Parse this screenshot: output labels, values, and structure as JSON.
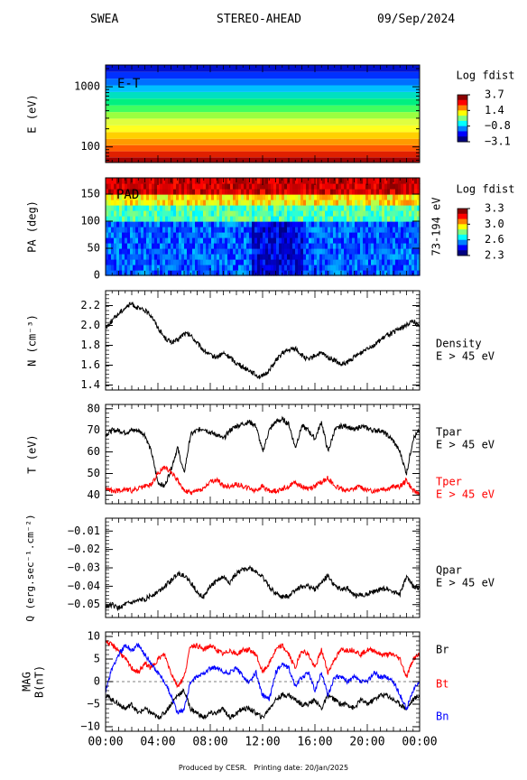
{
  "header": {
    "instrument": "SWEA",
    "spacecraft": "STEREO-AHEAD",
    "date": "09/Sep/2024"
  },
  "footer": {
    "produced_by": "Produced by CESR.",
    "printing_date": "Printing date: 20/Jan/2025"
  },
  "colors": {
    "black": "#000000",
    "red": "#ff0000",
    "blue": "#0000ff"
  },
  "chart_data": [
    {
      "type": "heatmap",
      "panel": "energy",
      "tag": "E-T",
      "ylabel": "E (eV)",
      "yscale": "log",
      "ylim": [
        55,
        2300
      ],
      "yticks": [
        {
          "v": 100,
          "label": "100"
        },
        {
          "v": 1000,
          "label": "1000"
        }
      ],
      "colorbar": {
        "title": "Log fdist",
        "max": 3.7,
        "min": -3.1,
        "ticks": [
          "3.7",
          "1.4",
          "-0.8",
          "-3.1"
        ]
      },
      "energy_bands": [
        {
          "e": 60,
          "color": "#a00000"
        },
        {
          "e": 75,
          "color": "#e02000"
        },
        {
          "e": 95,
          "color": "#ff5a00"
        },
        {
          "e": 120,
          "color": "#ff9a00"
        },
        {
          "e": 155,
          "color": "#ffd000"
        },
        {
          "e": 200,
          "color": "#ffff20"
        },
        {
          "e": 260,
          "color": "#e0ff40"
        },
        {
          "e": 335,
          "color": "#9aff40"
        },
        {
          "e": 430,
          "color": "#40ff60"
        },
        {
          "e": 560,
          "color": "#00f080"
        },
        {
          "e": 720,
          "color": "#00e0c0"
        },
        {
          "e": 930,
          "color": "#00c0ff"
        },
        {
          "e": 1200,
          "color": "#0070ff"
        },
        {
          "e": 1550,
          "color": "#0030ff"
        },
        {
          "e": 2000,
          "color": "#0010d0"
        }
      ]
    },
    {
      "type": "heatmap",
      "panel": "pad",
      "tag": "PAD",
      "ylabel": "PA (deg)",
      "ylim": [
        0,
        180
      ],
      "yticks": [
        0,
        50,
        100,
        150
      ],
      "right_label": "73-194 eV",
      "colorbar": {
        "title": "Log fdist",
        "max": 3.3,
        "min": 2.3,
        "ticks": [
          "3.3",
          "3.0",
          "2.6",
          "2.3"
        ]
      }
    },
    {
      "type": "line",
      "panel": "density",
      "ylabel": "N (cm⁻³)",
      "ylim": [
        1.35,
        2.35
      ],
      "yticks": [
        "1.4",
        "1.6",
        "1.8",
        "2.0",
        "2.2"
      ],
      "legend": [
        "Density",
        "E > 45 eV"
      ],
      "series": [
        {
          "name": "Density",
          "color": "#000000",
          "x": [
            0,
            0.5,
            1,
            1.5,
            2,
            2.5,
            3,
            3.5,
            4,
            4.5,
            5,
            5.5,
            6,
            6.5,
            7,
            7.5,
            8,
            8.5,
            9,
            9.5,
            10,
            10.5,
            11,
            11.5,
            12,
            12.5,
            13,
            13.5,
            14,
            14.5,
            15,
            15.5,
            16,
            16.5,
            17,
            17.5,
            18,
            18.5,
            19,
            19.5,
            20,
            20.5,
            21,
            21.5,
            22,
            22.5,
            23,
            23.5,
            24
          ],
          "values": [
            1.98,
            2.05,
            2.12,
            2.18,
            2.22,
            2.17,
            2.15,
            2.1,
            1.98,
            1.88,
            1.83,
            1.85,
            1.92,
            1.9,
            1.82,
            1.75,
            1.7,
            1.68,
            1.72,
            1.68,
            1.62,
            1.58,
            1.55,
            1.5,
            1.48,
            1.55,
            1.64,
            1.72,
            1.75,
            1.77,
            1.7,
            1.65,
            1.7,
            1.72,
            1.68,
            1.65,
            1.6,
            1.63,
            1.68,
            1.72,
            1.78,
            1.8,
            1.85,
            1.9,
            1.93,
            1.97,
            2.0,
            2.05,
            1.98
          ]
        }
      ]
    },
    {
      "type": "line",
      "panel": "temperature",
      "ylabel": "T (eV)",
      "ylim": [
        36,
        82
      ],
      "yticks": [
        "40",
        "50",
        "60",
        "70",
        "80"
      ],
      "legend": [
        "Tpar",
        "E > 45 eV",
        "Tper",
        "E > 45 eV"
      ],
      "series": [
        {
          "name": "Tpar",
          "color": "#000000",
          "x": [
            0,
            0.5,
            1,
            1.5,
            2,
            2.5,
            3,
            3.5,
            4,
            4.5,
            5,
            5.5,
            6,
            6.5,
            7,
            7.5,
            8,
            8.5,
            9,
            9.5,
            10,
            10.5,
            11,
            11.5,
            12,
            12.5,
            13,
            13.5,
            14,
            14.5,
            15,
            15.5,
            16,
            16.5,
            17,
            17.5,
            18,
            18.5,
            19,
            19.5,
            20,
            20.5,
            21,
            21.5,
            22,
            22.5,
            23,
            23.5,
            24
          ],
          "values": [
            68,
            70,
            70,
            69,
            70,
            70,
            68,
            60,
            46,
            44,
            52,
            62,
            50,
            68,
            70,
            71,
            69,
            68,
            66,
            70,
            72,
            73,
            74,
            72,
            60,
            70,
            74,
            75,
            73,
            62,
            72,
            70,
            66,
            74,
            60,
            70,
            72,
            72,
            70,
            72,
            71,
            70,
            70,
            68,
            65,
            60,
            50,
            66,
            70
          ]
        },
        {
          "name": "Tper",
          "color": "#ff0000",
          "x": [
            0,
            0.5,
            1,
            1.5,
            2,
            2.5,
            3,
            3.5,
            4,
            4.5,
            5,
            5.5,
            6,
            6.5,
            7,
            7.5,
            8,
            8.5,
            9,
            9.5,
            10,
            10.5,
            11,
            11.5,
            12,
            12.5,
            13,
            13.5,
            14,
            14.5,
            15,
            15.5,
            16,
            16.5,
            17,
            17.5,
            18,
            18.5,
            19,
            19.5,
            20,
            20.5,
            21,
            21.5,
            22,
            22.5,
            23,
            23.5,
            24
          ],
          "values": [
            43,
            42,
            42,
            43,
            42,
            43,
            44,
            45,
            50,
            53,
            51,
            47,
            42,
            41,
            42,
            43,
            46,
            47,
            44,
            44,
            45,
            44,
            43,
            42,
            44,
            42,
            42,
            43,
            44,
            46,
            44,
            43,
            44,
            46,
            48,
            44,
            43,
            42,
            43,
            44,
            42,
            42,
            43,
            43,
            44,
            44,
            47,
            42,
            41
          ]
        }
      ]
    },
    {
      "type": "line",
      "panel": "heatflux",
      "ylabel": "Q (erg.sec⁻¹.cm⁻²)",
      "ylim": [
        -0.057,
        -0.003
      ],
      "yticks": [
        "-0.05",
        "-0.04",
        "-0.03",
        "-0.02",
        "-0.01"
      ],
      "legend": [
        "Qpar",
        "E > 45 eV"
      ],
      "series": [
        {
          "name": "Qpar",
          "color": "#000000",
          "x": [
            0,
            0.5,
            1,
            1.5,
            2,
            2.5,
            3,
            3.5,
            4,
            4.5,
            5,
            5.5,
            6,
            6.5,
            7,
            7.5,
            8,
            8.5,
            9,
            9.5,
            10,
            10.5,
            11,
            11.5,
            12,
            12.5,
            13,
            13.5,
            14,
            14.5,
            15,
            15.5,
            16,
            16.5,
            17,
            17.5,
            18,
            18.5,
            19,
            19.5,
            20,
            20.5,
            21,
            21.5,
            22,
            22.5,
            23,
            23.5,
            24
          ],
          "values": [
            -0.051,
            -0.05,
            -0.052,
            -0.05,
            -0.049,
            -0.048,
            -0.047,
            -0.045,
            -0.043,
            -0.04,
            -0.037,
            -0.033,
            -0.034,
            -0.038,
            -0.043,
            -0.046,
            -0.04,
            -0.037,
            -0.035,
            -0.038,
            -0.033,
            -0.031,
            -0.03,
            -0.032,
            -0.035,
            -0.04,
            -0.044,
            -0.046,
            -0.045,
            -0.042,
            -0.04,
            -0.04,
            -0.042,
            -0.038,
            -0.034,
            -0.04,
            -0.042,
            -0.041,
            -0.045,
            -0.045,
            -0.044,
            -0.043,
            -0.042,
            -0.041,
            -0.043,
            -0.044,
            -0.035,
            -0.04,
            -0.041
          ]
        }
      ]
    },
    {
      "type": "line",
      "panel": "mag",
      "ylabel": "MAG B(nT)",
      "ylim": [
        -11,
        11
      ],
      "yticks": [
        "-10",
        "-5",
        "0",
        "5",
        "10"
      ],
      "legend": [
        "Br",
        "Bt",
        "Bn"
      ],
      "xlim": [
        0,
        24
      ],
      "xticks": [
        "00:00",
        "04:00",
        "08:00",
        "12:00",
        "16:00",
        "20:00",
        "00:00"
      ],
      "series": [
        {
          "name": "Br",
          "color": "#000000",
          "x": [
            0,
            0.5,
            1,
            1.5,
            2,
            2.5,
            3,
            3.5,
            4,
            4.5,
            5,
            5.5,
            6,
            6.5,
            7,
            7.5,
            8,
            8.5,
            9,
            9.5,
            10,
            10.5,
            11,
            11.5,
            12,
            12.5,
            13,
            13.5,
            14,
            14.5,
            15,
            15.5,
            16,
            16.5,
            17,
            17.5,
            18,
            18.5,
            19,
            19.5,
            20,
            20.5,
            21,
            21.5,
            22,
            22.5,
            23,
            23.5,
            24
          ],
          "values": [
            -3,
            -4,
            -5,
            -6,
            -5,
            -7,
            -6,
            -7,
            -8,
            -7,
            -5,
            -3,
            -2,
            -6,
            -7,
            -8,
            -7,
            -7,
            -6,
            -8,
            -7,
            -6,
            -6,
            -7,
            -8,
            -6,
            -4,
            -3,
            -3,
            -4,
            -5,
            -5,
            -4,
            -6,
            -3,
            -4,
            -5,
            -5,
            -6,
            -4,
            -5,
            -4,
            -3,
            -3,
            -4,
            -5,
            -6,
            -4,
            -3
          ]
        },
        {
          "name": "Bt",
          "color": "#ff0000",
          "x": [
            0,
            0.5,
            1,
            1.5,
            2,
            2.5,
            3,
            3.5,
            4,
            4.5,
            5,
            5.5,
            6,
            6.5,
            7,
            7.5,
            8,
            8.5,
            9,
            9.5,
            10,
            10.5,
            11,
            11.5,
            12,
            12.5,
            13,
            13.5,
            14,
            14.5,
            15,
            15.5,
            16,
            16.5,
            17,
            17.5,
            18,
            18.5,
            19,
            19.5,
            20,
            20.5,
            21,
            21.5,
            22,
            22.5,
            23,
            23.5,
            24
          ],
          "values": [
            9,
            8,
            7,
            5,
            3,
            2,
            4,
            3,
            5,
            6,
            2,
            -1,
            1,
            8,
            8,
            7,
            8,
            7,
            6,
            7,
            6,
            7,
            7,
            6,
            2,
            4,
            7,
            8,
            6,
            3,
            7,
            6,
            3,
            7,
            2,
            5,
            7,
            7,
            7,
            6,
            7,
            7,
            6,
            6,
            6,
            5,
            1,
            5,
            6
          ]
        },
        {
          "name": "Bn",
          "color": "#0000ff",
          "x": [
            0,
            0.5,
            1,
            1.5,
            2,
            2.5,
            3,
            3.5,
            4,
            4.5,
            5,
            5.5,
            6,
            6.5,
            7,
            7.5,
            8,
            8.5,
            9,
            9.5,
            10,
            10.5,
            11,
            11.5,
            12,
            12.5,
            13,
            13.5,
            14,
            14.5,
            15,
            15.5,
            16,
            16.5,
            17,
            17.5,
            18,
            18.5,
            19,
            19.5,
            20,
            20.5,
            21,
            21.5,
            22,
            22.5,
            23,
            23.5,
            24
          ],
          "values": [
            -2,
            3,
            6,
            8,
            7,
            8,
            6,
            4,
            2,
            0,
            -3,
            -7,
            -6,
            0,
            1,
            2,
            3,
            3,
            2,
            2,
            3,
            1,
            0,
            2,
            -3,
            -4,
            2,
            4,
            3,
            -1,
            1,
            2,
            -2,
            2,
            -3,
            1,
            1,
            0,
            1,
            0,
            0,
            2,
            1,
            1,
            0,
            -3,
            -6,
            -2,
            0
          ]
        }
      ]
    }
  ]
}
